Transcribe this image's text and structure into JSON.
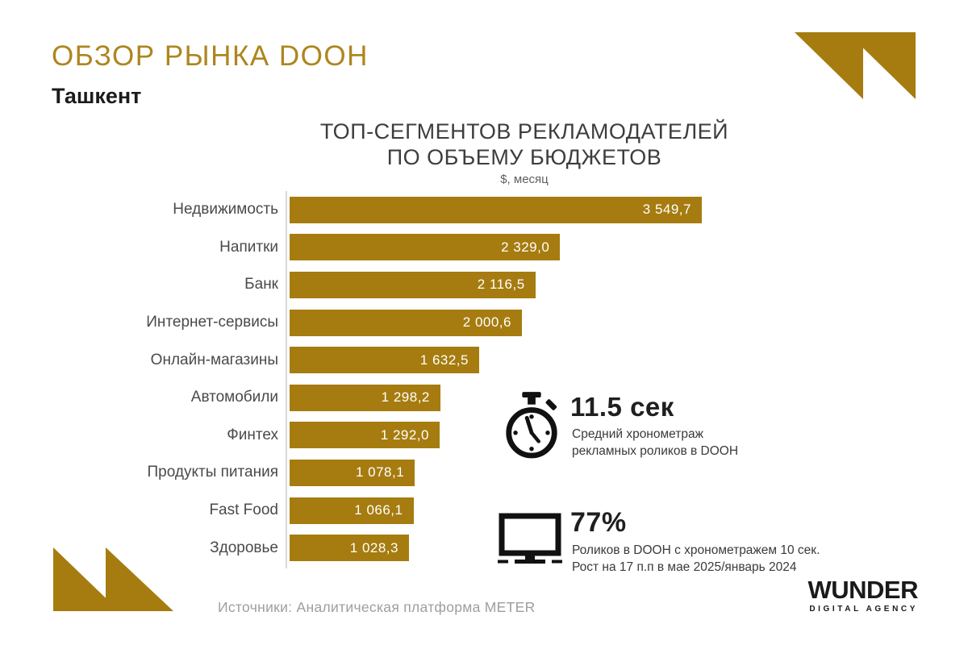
{
  "header": {
    "title": "ОБЗОР РЫНКА DOOH",
    "subtitle": "Ташкент"
  },
  "chart_data": {
    "type": "bar",
    "orientation": "horizontal",
    "title_lines": [
      "ТОП-СЕГМЕНТОВ РЕКЛАМОДАТЕЛЕЙ",
      "ПО ОБЪЕМУ БЮДЖЕТОВ"
    ],
    "unit_label": "$, месяц",
    "categories": [
      "Недвижимость",
      "Напитки",
      "Банк",
      "Интернет-сервисы",
      "Онлайн-магазины",
      "Автомобили",
      "Финтех",
      "Продукты питания",
      "Fast Food",
      "Здоровье"
    ],
    "values": [
      3549.7,
      2329.0,
      2116.5,
      2000.6,
      1632.5,
      1298.2,
      1292.0,
      1078.1,
      1066.1,
      1028.3
    ],
    "value_labels": [
      "3 549,7",
      "2 329,0",
      "2 116,5",
      "2 000,6",
      "1 632,5",
      "1 298,2",
      "1 292,0",
      "1 078,1",
      "1 066,1",
      "1 028,3"
    ],
    "xlim": [
      0,
      3549.7
    ],
    "grid": false,
    "legend": null,
    "bar_color": "#A67C10",
    "value_label_position": "inside-end"
  },
  "stats": [
    {
      "icon": "stopwatch-icon",
      "value": "11.5 сек",
      "description_lines": [
        "Средний хронометраж",
        "рекламных роликов в DOOH"
      ]
    },
    {
      "icon": "monitor-icon",
      "value": "77%",
      "description_lines": [
        "Роликов в DOOH с хронометражем 10 сек.",
        "Рост на 17 п.п в мае 2025/январь 2024"
      ]
    }
  ],
  "footer": {
    "source": "Источники: Аналитическая платформа METER",
    "logo_name": "WUNDER",
    "logo_tagline": "DIGITAL AGENCY"
  },
  "colors": {
    "brand_gold": "#A67C10",
    "title_gold": "#AE861F",
    "text_dark": "#3d3d3d",
    "muted_gray": "#9e9e9e"
  }
}
